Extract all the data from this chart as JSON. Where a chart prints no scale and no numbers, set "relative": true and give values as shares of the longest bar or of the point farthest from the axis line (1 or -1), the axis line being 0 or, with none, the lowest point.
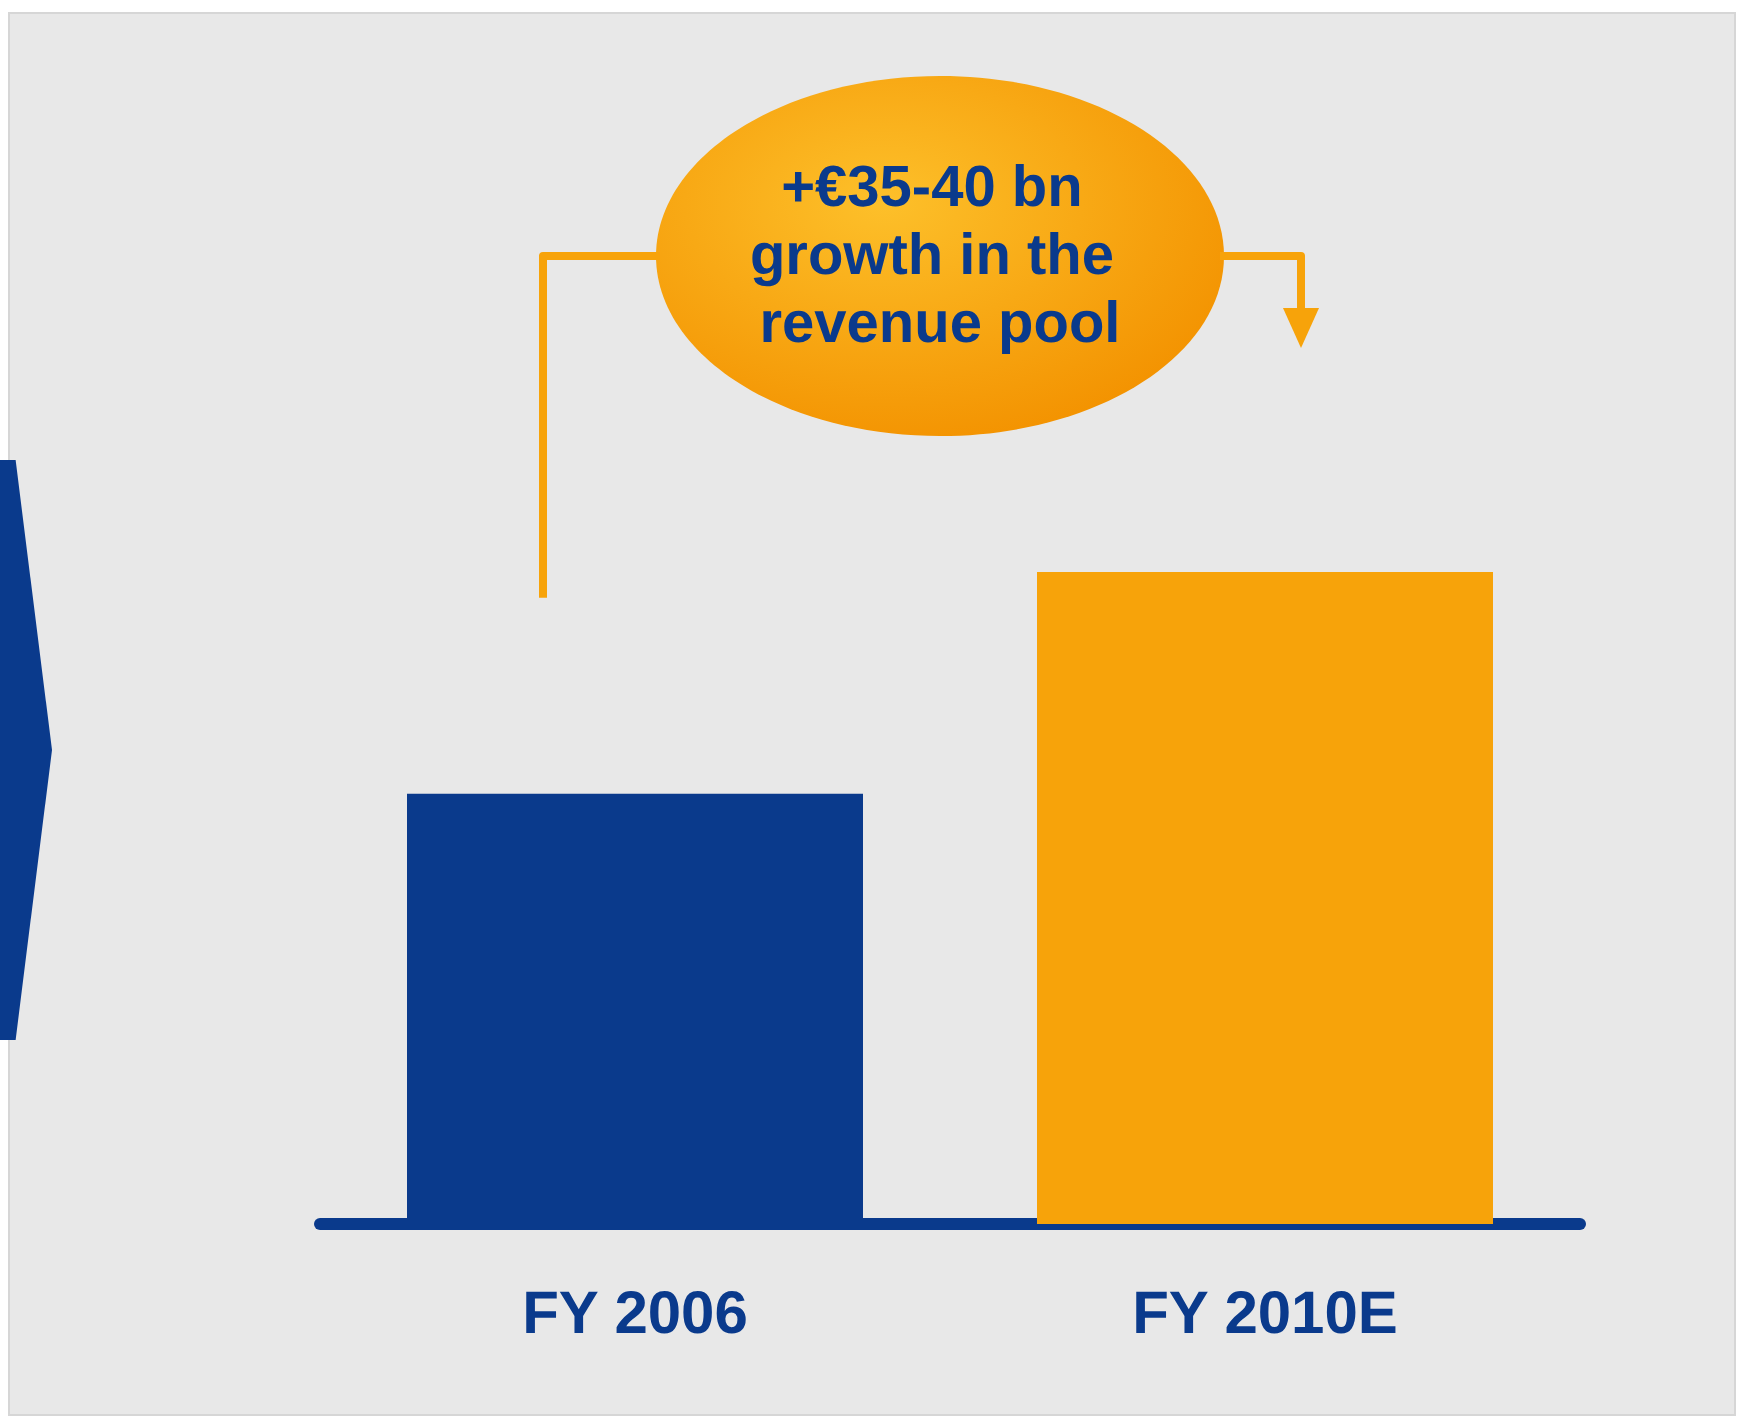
{
  "chart_data": {
    "type": "bar",
    "relative": true,
    "categories": [
      "FY 2006",
      "FY 2010E"
    ],
    "values": [
      0.66,
      1
    ],
    "colors": [
      "#0a3a8c",
      "#f7a30a"
    ],
    "annotations": [
      "+€35-40 bn growth in the revenue pool"
    ],
    "grid": false
  }
}
